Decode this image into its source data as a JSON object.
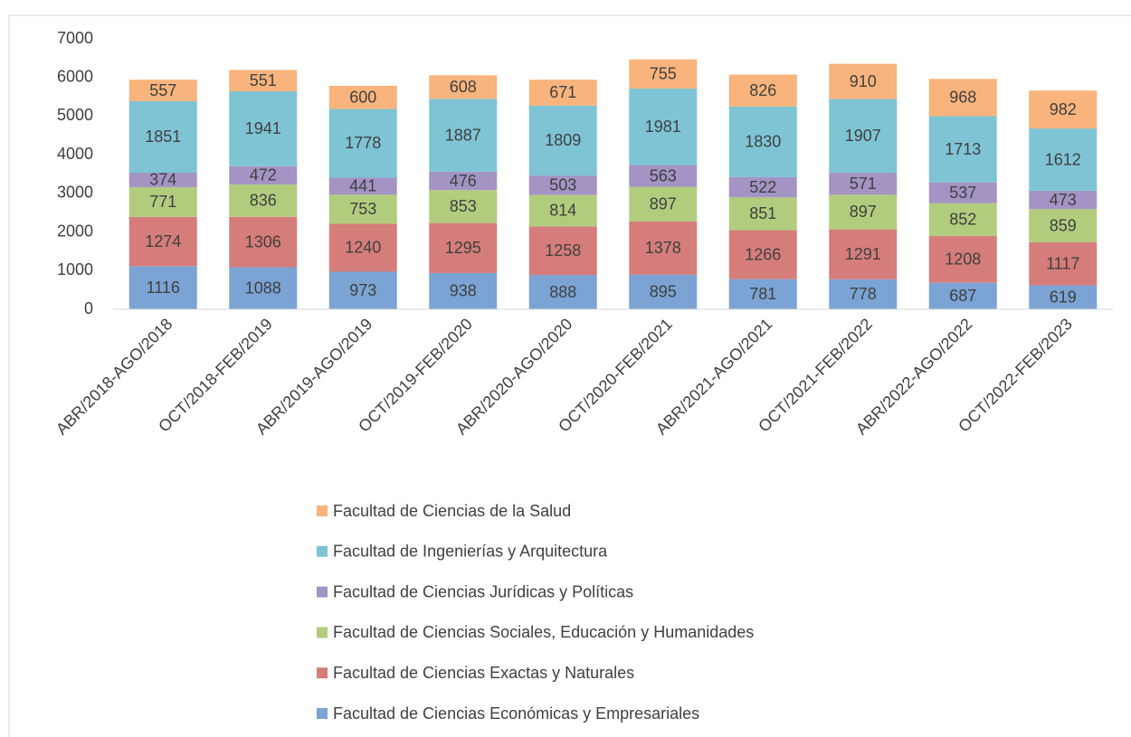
{
  "chart_data": {
    "type": "stacked_bar",
    "categories": [
      "ABR/2018-AGO/2018",
      "OCT/2018-FEB/2019",
      "ABR/2019-AGO/2019",
      "OCT/2019-FEB/2020",
      "ABR/2020-AGO/2020",
      "OCT/2020-FEB/2021",
      "ABR/2021-AGO/2021",
      "OCT/2021-FEB/2022",
      "ABR/2022-AGO/2022",
      "OCT/2022-FEB/2023"
    ],
    "series": [
      {
        "name": "Facultad de Ciencias Económicas y Empresariales",
        "color": "#7ba3d4",
        "values": [
          1116,
          1088,
          973,
          938,
          888,
          895,
          781,
          778,
          687,
          619
        ]
      },
      {
        "name": "Facultad de Ciencias Exactas y Naturales",
        "color": "#d57d7a",
        "values": [
          1274,
          1306,
          1240,
          1295,
          1258,
          1378,
          1266,
          1291,
          1208,
          1117
        ]
      },
      {
        "name": "Facultad de Ciencias Sociales, Educación y Humanidades",
        "color": "#b2cc7e",
        "values": [
          771,
          836,
          753,
          853,
          814,
          897,
          851,
          897,
          852,
          859
        ]
      },
      {
        "name": "Facultad de Ciencias Jurídicas y Políticas",
        "color": "#a394c4",
        "values": [
          374,
          472,
          441,
          476,
          503,
          563,
          522,
          571,
          537,
          473
        ]
      },
      {
        "name": "Facultad de Ingenierías y Arquitectura",
        "color": "#7ec4d4",
        "values": [
          1851,
          1941,
          1778,
          1887,
          1809,
          1981,
          1830,
          1907,
          1713,
          1612
        ]
      },
      {
        "name": "Facultad de Ciencias de la Salud",
        "color": "#f8b47c",
        "values": [
          557,
          551,
          600,
          608,
          671,
          755,
          826,
          910,
          968,
          982
        ]
      }
    ],
    "ylim": [
      0,
      7000
    ],
    "yticks": [
      0,
      1000,
      2000,
      3000,
      4000,
      5000,
      6000,
      7000
    ],
    "grid": false,
    "legend": "bottom"
  }
}
